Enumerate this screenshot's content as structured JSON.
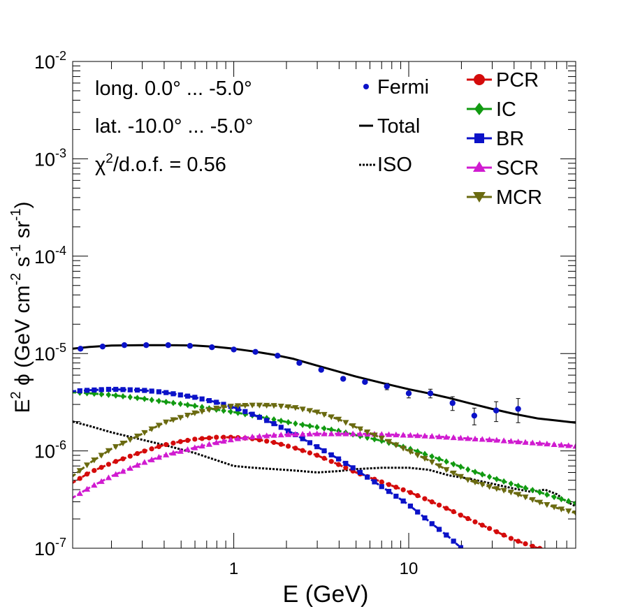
{
  "chart_data": {
    "type": "line",
    "xlabel": "E (GeV)",
    "ylabel": "E² ϕ (GeV cm⁻² s⁻¹ sr⁻¹)",
    "ylabel_parts": {
      "a": "E",
      "a_sup": "2",
      "b": " ϕ (GeV cm",
      "b_sup": "-2",
      "c": " s",
      "c_sup": "-1",
      "d": " sr",
      "d_sup": "-1",
      "e": ")"
    },
    "xscale": "log",
    "yscale": "log",
    "xlim": [
      0.12,
      90
    ],
    "ylim": [
      1e-07,
      0.01
    ],
    "x_tick_labels": [
      {
        "value": 1,
        "label": "1"
      },
      {
        "value": 10,
        "label": "10"
      }
    ],
    "y_tick_labels": [
      {
        "value": 1e-07,
        "base": "10",
        "exp": "-7"
      },
      {
        "value": 1e-06,
        "base": "10",
        "exp": "-6"
      },
      {
        "value": 1e-05,
        "base": "10",
        "exp": "-5"
      },
      {
        "value": 0.0001,
        "base": "10",
        "exp": "-4"
      },
      {
        "value": 0.001,
        "base": "10",
        "exp": "-3"
      },
      {
        "value": 0.01,
        "base": "10",
        "exp": "-2"
      }
    ],
    "annotations": {
      "longitude": "long. 0.0° ... -5.0°",
      "latitude": "lat. -10.0° ... -5.0°",
      "chi2_symbol": "χ",
      "chi2_sup": "2",
      "chi2_rest": "/d.o.f. = 0.56"
    },
    "legend_left": [
      {
        "name": "Fermi",
        "style": "dot",
        "color": "#0b12c8"
      },
      {
        "name": "Total",
        "style": "solid",
        "color": "#000000"
      },
      {
        "name": "ISO",
        "style": "dotted",
        "color": "#000000"
      }
    ],
    "legend_right": [
      {
        "name": "PCR",
        "marker": "circle",
        "color": "#d40b0b"
      },
      {
        "name": "IC",
        "marker": "diamond",
        "color": "#119a11"
      },
      {
        "name": "BR",
        "marker": "square",
        "color": "#0b12c8"
      },
      {
        "name": "SCR",
        "marker": "triangle-up",
        "color": "#d01bd0"
      },
      {
        "name": "MCR",
        "marker": "triangle-down",
        "color": "#6a6a10"
      }
    ],
    "fermi": {
      "color": "#0b12c8",
      "points": [
        {
          "x": 0.133,
          "y": 1.12e-05,
          "err": 0
        },
        {
          "x": 0.178,
          "y": 1.18e-05,
          "err": 0
        },
        {
          "x": 0.237,
          "y": 1.22e-05,
          "err": 0
        },
        {
          "x": 0.316,
          "y": 1.22e-05,
          "err": 0
        },
        {
          "x": 0.422,
          "y": 1.22e-05,
          "err": 0
        },
        {
          "x": 0.562,
          "y": 1.2e-05,
          "err": 0
        },
        {
          "x": 0.75,
          "y": 1.16e-05,
          "err": 0
        },
        {
          "x": 1.0,
          "y": 1.1e-05,
          "err": 0
        },
        {
          "x": 1.33,
          "y": 1.04e-05,
          "err": 0
        },
        {
          "x": 1.78,
          "y": 9.5e-06,
          "err": 0
        },
        {
          "x": 2.37,
          "y": 8e-06,
          "err": 0
        },
        {
          "x": 3.16,
          "y": 6.8e-06,
          "err": 0
        },
        {
          "x": 4.22,
          "y": 5.5e-06,
          "err": 2e-07
        },
        {
          "x": 5.62,
          "y": 5.1e-06,
          "err": 2e-07
        },
        {
          "x": 7.5,
          "y": 4.6e-06,
          "err": 3.5e-07
        },
        {
          "x": 10.0,
          "y": 3.9e-06,
          "err": 4e-07
        },
        {
          "x": 13.3,
          "y": 3.9e-06,
          "err": 4e-07
        },
        {
          "x": 17.8,
          "y": 3.1e-06,
          "err": 5e-07
        },
        {
          "x": 23.7,
          "y": 2.3e-06,
          "err": 4.5e-07
        },
        {
          "x": 31.6,
          "y": 2.6e-06,
          "err": 6e-07
        },
        {
          "x": 42.2,
          "y": 2.7e-06,
          "err": 7.5e-07
        }
      ]
    },
    "series": [
      {
        "name": "Total",
        "color": "#000000",
        "style": "solid",
        "marker": "none",
        "x": [
          0.12,
          0.15,
          0.2,
          0.3,
          0.4,
          0.6,
          0.8,
          1.0,
          1.3,
          1.7,
          2.2,
          3,
          4,
          5,
          7,
          10,
          13,
          17,
          22,
          30,
          40,
          55,
          70,
          90
        ],
        "y": [
          1.12e-05,
          1.17e-05,
          1.21e-05,
          1.22e-05,
          1.22e-05,
          1.21e-05,
          1.17e-05,
          1.12e-05,
          1.05e-05,
          9.7e-06,
          8.8e-06,
          7.5e-06,
          6.5e-06,
          5.8e-06,
          5e-06,
          4.3e-06,
          3.9e-06,
          3.5e-06,
          3.1e-06,
          2.7e-06,
          2.4e-06,
          2.15e-06,
          2.05e-06,
          1.95e-06
        ]
      },
      {
        "name": "ISO",
        "color": "#000000",
        "style": "dotted",
        "marker": "none",
        "x": [
          0.12,
          0.15,
          0.2,
          0.3,
          0.4,
          0.6,
          0.8,
          1.0,
          1.3,
          1.7,
          2.2,
          3,
          4,
          5,
          7,
          10,
          13,
          17,
          22,
          30,
          40,
          50,
          60,
          70,
          80,
          90
        ],
        "y": [
          2e-06,
          1.8e-06,
          1.55e-06,
          1.3e-06,
          1.15e-06,
          9.5e-07,
          8e-07,
          7e-07,
          6.7e-07,
          6.5e-07,
          6.3e-07,
          6e-07,
          6.2e-07,
          6.5e-07,
          6.7e-07,
          6.7e-07,
          6.4e-07,
          5.6e-07,
          5.2e-07,
          4.6e-07,
          4.1e-07,
          3.8e-07,
          4e-07,
          3.6e-07,
          3e-07,
          2.7e-07
        ]
      },
      {
        "name": "PCR",
        "color": "#d40b0b",
        "style": "dashed",
        "marker": "circle",
        "x": [
          0.12,
          0.15,
          0.2,
          0.3,
          0.4,
          0.5,
          0.6,
          0.8,
          1.0,
          1.3,
          1.7,
          2.2,
          3,
          4,
          5,
          7,
          10,
          13,
          17,
          22,
          30,
          40,
          55,
          60
        ],
        "y": [
          4.7e-07,
          6e-07,
          7.5e-07,
          9.8e-07,
          1.15e-06,
          1.25e-06,
          1.32e-06,
          1.38e-06,
          1.38e-06,
          1.33e-06,
          1.22e-06,
          1.08e-06,
          9e-07,
          7.2e-07,
          6e-07,
          4.8e-07,
          3.8e-07,
          3.1e-07,
          2.5e-07,
          2e-07,
          1.55e-07,
          1.22e-07,
          1e-07,
          9.8e-08
        ]
      },
      {
        "name": "IC",
        "color": "#119a11",
        "style": "dashed",
        "marker": "diamond",
        "x": [
          0.12,
          0.15,
          0.2,
          0.3,
          0.4,
          0.6,
          0.8,
          1.0,
          1.3,
          1.7,
          2.2,
          3,
          4,
          5,
          7,
          10,
          13,
          17,
          22,
          30,
          40,
          55,
          70,
          90
        ],
        "y": [
          4e-06,
          3.9e-06,
          3.75e-06,
          3.45e-06,
          3.2e-06,
          2.9e-06,
          2.65e-06,
          2.5e-06,
          2.3e-06,
          2.1e-06,
          1.92e-06,
          1.75e-06,
          1.6e-06,
          1.45e-06,
          1.27e-06,
          1.06e-06,
          9e-07,
          7.6e-07,
          6.4e-07,
          5.3e-07,
          4.5e-07,
          3.8e-07,
          3.3e-07,
          2.9e-07
        ]
      },
      {
        "name": "BR",
        "color": "#0b12c8",
        "style": "dashed",
        "marker": "square",
        "x": [
          0.12,
          0.15,
          0.2,
          0.3,
          0.4,
          0.6,
          0.8,
          1.0,
          1.3,
          1.7,
          2.2,
          3,
          4,
          5,
          7,
          10,
          13,
          17,
          20
        ],
        "y": [
          4.1e-06,
          4.2e-06,
          4.3e-06,
          4.2e-06,
          4e-06,
          3.55e-06,
          3.15e-06,
          2.8e-06,
          2.35e-06,
          1.9e-06,
          1.5e-06,
          1.1e-06,
          8.2e-07,
          6.4e-07,
          4.3e-07,
          2.8e-07,
          1.9e-07,
          1.3e-07,
          1e-07
        ]
      },
      {
        "name": "SCR",
        "color": "#d01bd0",
        "style": "dashed",
        "marker": "triangle-up",
        "x": [
          0.12,
          0.15,
          0.2,
          0.3,
          0.4,
          0.6,
          0.8,
          1.0,
          1.3,
          1.7,
          2.2,
          3,
          4,
          5,
          7,
          10,
          13,
          17,
          22,
          30,
          40,
          55,
          70,
          90
        ],
        "y": [
          3.3e-07,
          4.2e-07,
          5.5e-07,
          7.5e-07,
          9e-07,
          1.08e-06,
          1.22e-06,
          1.32e-06,
          1.4e-06,
          1.45e-06,
          1.48e-06,
          1.5e-06,
          1.5e-06,
          1.5e-06,
          1.48e-06,
          1.45e-06,
          1.42e-06,
          1.38e-06,
          1.34e-06,
          1.3e-06,
          1.25e-06,
          1.2e-06,
          1.16e-06,
          1.12e-06
        ]
      },
      {
        "name": "MCR",
        "color": "#6a6a10",
        "style": "dashed",
        "marker": "triangle-down",
        "x": [
          0.12,
          0.15,
          0.2,
          0.3,
          0.4,
          0.6,
          0.8,
          1.0,
          1.3,
          1.7,
          2.2,
          3,
          4,
          5,
          7,
          10,
          13,
          17,
          22,
          30,
          40,
          55,
          70,
          90
        ],
        "y": [
          5.5e-07,
          7.5e-07,
          1.05e-06,
          1.5e-06,
          1.95e-06,
          2.45e-06,
          2.75e-06,
          2.9e-06,
          2.95e-06,
          2.92e-06,
          2.8e-06,
          2.5e-06,
          2.1e-06,
          1.75e-06,
          1.35e-06,
          1e-06,
          8e-07,
          6.2e-07,
          5e-07,
          4.2e-07,
          3.7e-07,
          3e-07,
          2.6e-07,
          2.3e-07
        ]
      }
    ]
  }
}
